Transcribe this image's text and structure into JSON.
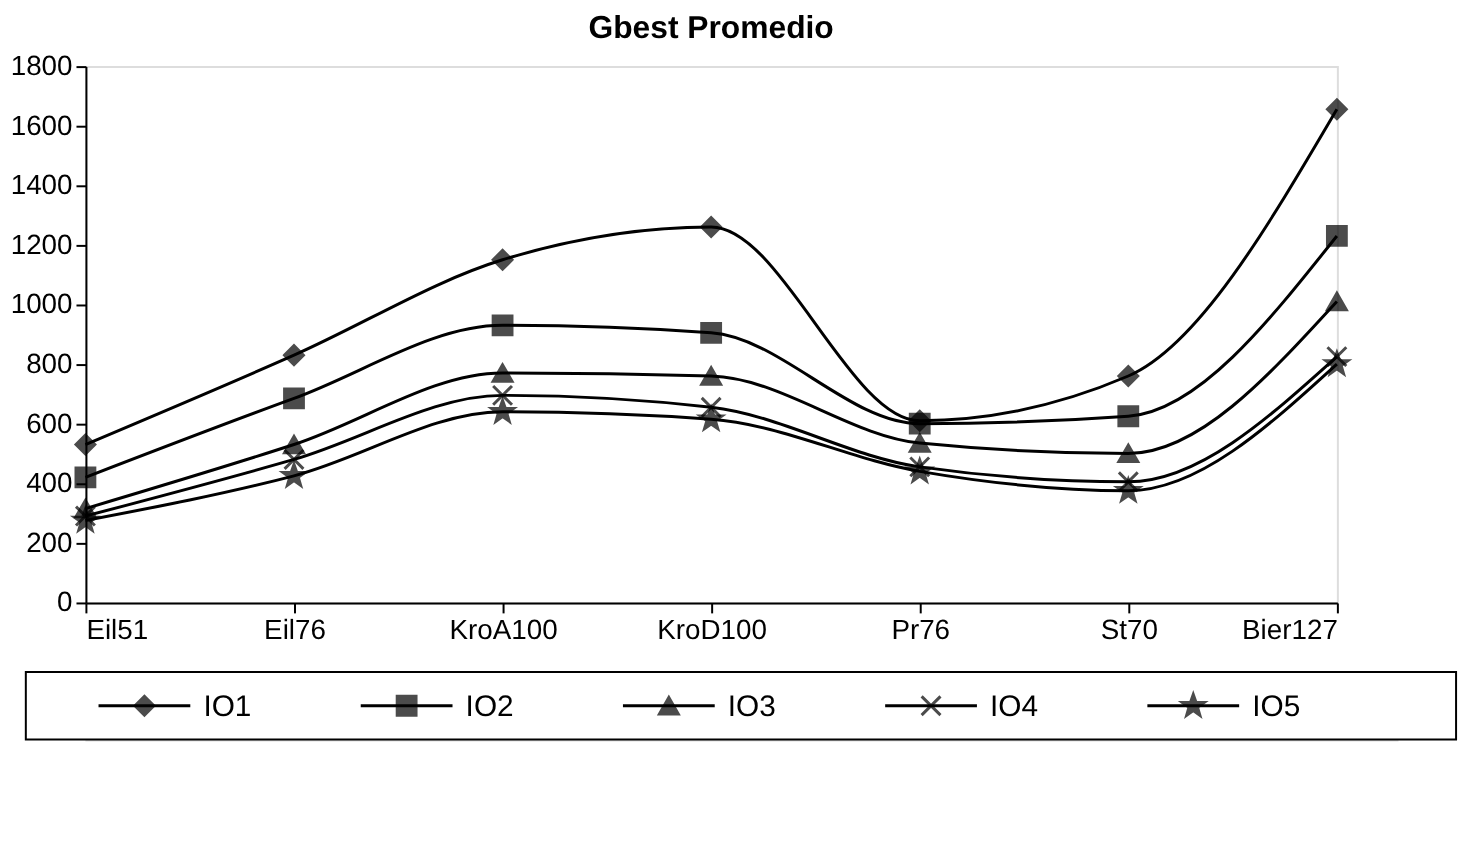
{
  "chart_data": {
    "type": "line",
    "title": "Gbest Promedio",
    "categories": [
      "Eil51",
      "Eil76",
      "KroA100",
      "KroD100",
      "Pr76",
      "St70",
      "Bier127"
    ],
    "series": [
      {
        "name": "IO1",
        "color": "#000000",
        "marker": "diamond",
        "values": [
          530,
          830,
          1150,
          1260,
          610,
          760,
          1655
        ]
      },
      {
        "name": "IO2",
        "color": "#000000",
        "marker": "square",
        "values": [
          420,
          685,
          930,
          905,
          600,
          625,
          1230
        ]
      },
      {
        "name": "IO3",
        "color": "#000000",
        "marker": "triangle",
        "values": [
          315,
          530,
          770,
          760,
          535,
          500,
          1010
        ]
      },
      {
        "name": "IO4",
        "color": "#000000",
        "marker": "cross",
        "values": [
          290,
          480,
          695,
          655,
          455,
          405,
          825
        ]
      },
      {
        "name": "IO5",
        "color": "#000000",
        "marker": "star",
        "values": [
          275,
          425,
          640,
          615,
          440,
          375,
          800
        ]
      }
    ],
    "ylim": [
      0,
      1800
    ],
    "yticks": [
      0,
      200,
      400,
      600,
      800,
      1000,
      1200,
      1400,
      1600,
      1800
    ],
    "grid": false,
    "legend": "bottom",
    "line_style": "solid"
  }
}
